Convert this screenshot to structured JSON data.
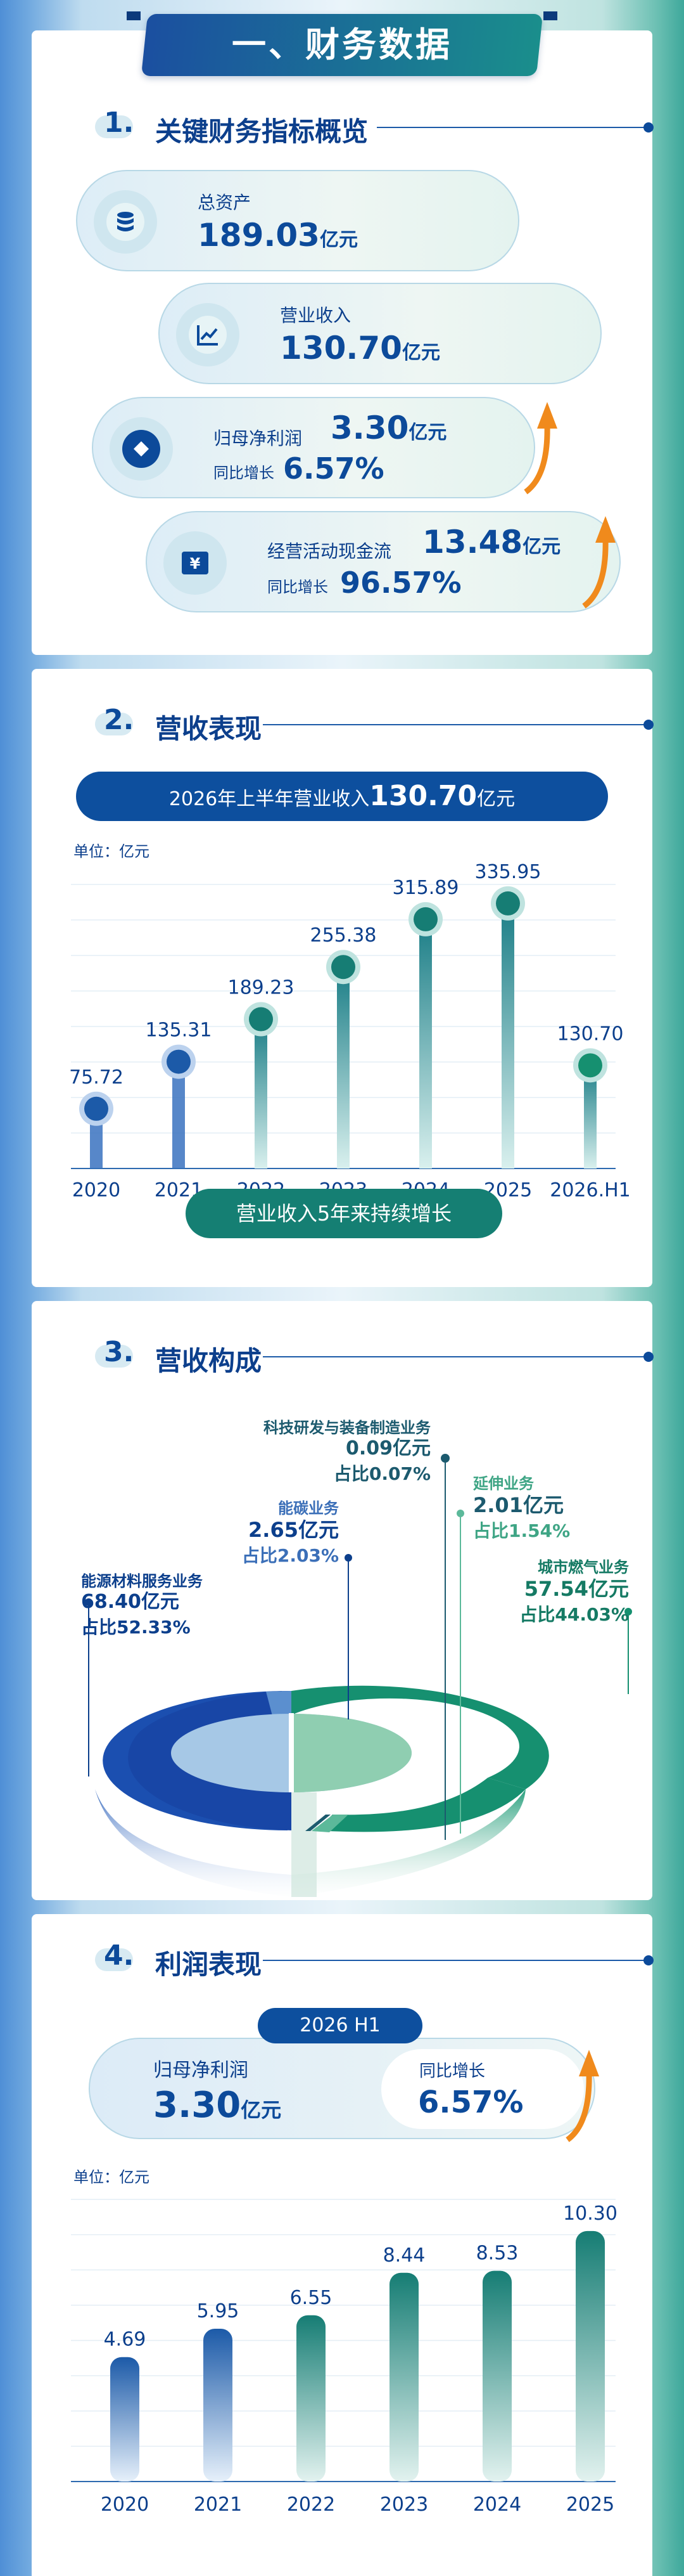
{
  "banner": {
    "title": "一、财务数据"
  },
  "sections": {
    "s1": {
      "num": "1.",
      "title": "关键财务指标概览"
    },
    "s2": {
      "num": "2.",
      "title": "营收表现"
    },
    "s3": {
      "num": "3.",
      "title": "营收构成"
    },
    "s4": {
      "num": "4.",
      "title": "利润表现"
    }
  },
  "kpis": {
    "total_assets": {
      "label": "总资产",
      "value": "189.03",
      "unit": "亿元"
    },
    "revenue": {
      "label": "营业收入",
      "value": "130.70",
      "unit": "亿元"
    },
    "net_profit": {
      "label": "归母净利润",
      "value": "3.30",
      "unit": "亿元",
      "growth_label": "同比增长",
      "growth": "6.57%"
    },
    "cash_flow": {
      "label": "经营活动现金流",
      "value": "13.48",
      "unit": "亿元",
      "growth_label": "同比增长",
      "growth": "96.57%"
    },
    "icons": [
      "database-icon",
      "line-chart-icon",
      "diamond-coin-icon",
      "yen-bill-icon",
      "up-arrow-icon"
    ]
  },
  "revenue_section": {
    "headline_prefix": "2026年上半年营业收入",
    "headline_value": "130.70",
    "headline_unit": "亿元",
    "unit_label": "单位：亿元",
    "footer_pill": "营业收入5年来持续增长"
  },
  "composition_section": {
    "slices": [
      {
        "name": "能源材料服务业务",
        "amount": "68.40亿元",
        "share": "占比52.33%",
        "color": "#1b4fb0"
      },
      {
        "name": "能碳业务",
        "amount": "2.65亿元",
        "share": "占比2.03%",
        "color": "#5b8fcf"
      },
      {
        "name": "科技研发与装备制造业务",
        "amount": "0.09亿元",
        "share": "占比0.07%",
        "color": "#1c5a6e"
      },
      {
        "name": "延伸业务",
        "amount": "2.01亿元",
        "share": "占比1.54%",
        "color": "#5cb99a"
      },
      {
        "name": "城市燃气业务",
        "amount": "57.54亿元",
        "share": "占比44.03%",
        "color": "#169070"
      }
    ]
  },
  "profit_section": {
    "period_pill": "2026 H1",
    "label": "归母净利润",
    "value": "3.30",
    "unit": "亿元",
    "growth_label": "同比增长",
    "growth": "6.57%",
    "unit_label": "单位：亿元"
  },
  "colors": {
    "navy": "#0c3f8c",
    "blue": "#1b4fa0",
    "teal": "#1a8e8c",
    "green": "#169070",
    "orange": "#f08a1c"
  },
  "chart_data": [
    {
      "type": "bar",
      "title": "",
      "categories": [
        "2020",
        "2021",
        "2022",
        "2023",
        "2024",
        "2025",
        "2026.H1"
      ],
      "values": [
        75.72,
        135.31,
        189.23,
        255.38,
        315.89,
        335.95,
        130.7
      ],
      "value_labels": [
        "75.72",
        "135.31",
        "189.23",
        "255.38",
        "315.89",
        "335.95",
        "130.70"
      ],
      "ylabel": "单位：亿元",
      "ylim": [
        0,
        360
      ],
      "grid": true
    },
    {
      "type": "pie",
      "title": "",
      "categories": [
        "能源材料服务业务",
        "能碳业务",
        "科技研发与装备制造业务",
        "延伸业务",
        "城市燃气业务"
      ],
      "values": [
        68.4,
        2.65,
        0.09,
        2.01,
        57.54
      ],
      "shares": [
        52.33,
        2.03,
        0.07,
        1.54,
        44.03
      ]
    },
    {
      "type": "bar",
      "title": "",
      "categories": [
        "2020",
        "2021",
        "2022",
        "2023",
        "2024",
        "2025"
      ],
      "values": [
        4.69,
        5.95,
        6.55,
        8.44,
        8.53,
        10.3
      ],
      "value_labels": [
        "4.69",
        "5.95",
        "6.55",
        "8.44",
        "8.53",
        "10.30"
      ],
      "ylabel": "单位：亿元",
      "ylim": [
        0,
        11
      ],
      "grid": true
    }
  ]
}
